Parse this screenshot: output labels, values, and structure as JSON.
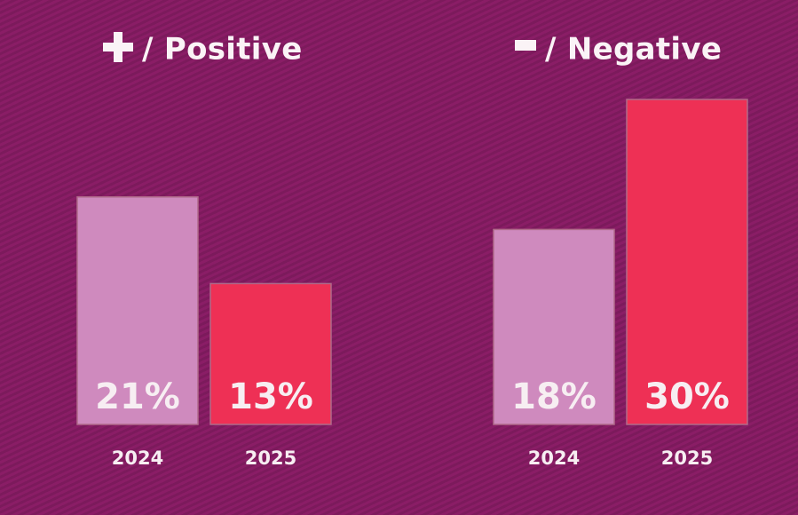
{
  "chart_data": [
    {
      "type": "bar",
      "title": "/ Positive",
      "title_symbol": "plus-icon",
      "categories": [
        "2024",
        "2025"
      ],
      "values": [
        21,
        13
      ],
      "value_labels": [
        "21%",
        "13%"
      ],
      "colors": [
        "#cf8abe",
        "#ee3055"
      ],
      "ylim": [
        0,
        32
      ]
    },
    {
      "type": "bar",
      "title": "/ Negative",
      "title_symbol": "minus-icon",
      "categories": [
        "2024",
        "2025"
      ],
      "values": [
        18,
        30
      ],
      "value_labels": [
        "18%",
        "30%"
      ],
      "colors": [
        "#cf8abe",
        "#ee3055"
      ],
      "ylim": [
        0,
        32
      ]
    }
  ],
  "colors": {
    "background": "#8a1d66",
    "bar_2024": "#cf8abe",
    "bar_2025": "#ee3055",
    "text": "#f7eef2"
  }
}
